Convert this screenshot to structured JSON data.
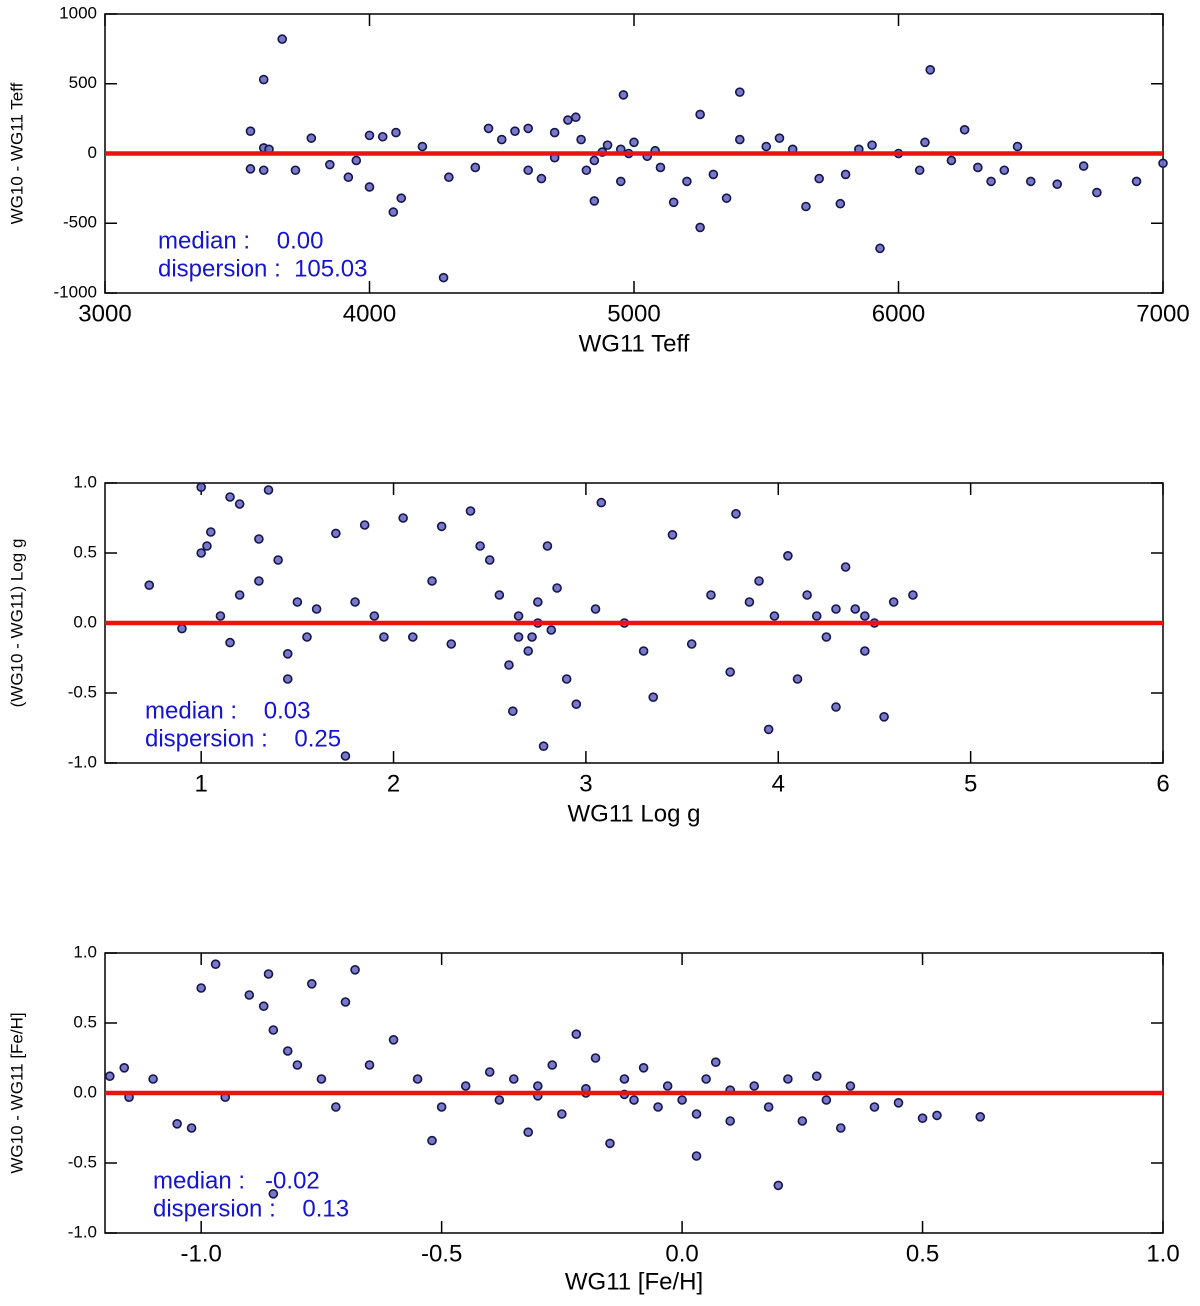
{
  "chart_data": [
    {
      "type": "scatter",
      "x_label": "WG11 Teff",
      "y_label": "WG10 - WG11 Teff",
      "annotations": [
        "median :    0.00",
        "dispersion :  105.03"
      ],
      "color": "#6a6ac4",
      "edge_color": "#14144a",
      "hline": 0,
      "hline_color": "#ee1111",
      "xlim": [
        3000,
        7000
      ],
      "xticks": [
        3000,
        4000,
        5000,
        6000,
        7000
      ],
      "ylim": [
        -1000,
        1000
      ],
      "yticks": [
        1000,
        500,
        0,
        -500,
        -1000
      ],
      "x": [
        3670,
        3600,
        6120,
        4960,
        5400,
        5250,
        3550,
        3600,
        3620,
        3780,
        3550,
        3600,
        3720,
        3850,
        3920,
        3950,
        4000,
        4050,
        4100,
        4000,
        4120,
        4090,
        4280,
        4200,
        4300,
        4400,
        4450,
        4500,
        4550,
        4600,
        4650,
        4700,
        4750,
        4780,
        4800,
        4850,
        4900,
        4950,
        5000,
        5050,
        5100,
        4950,
        4850,
        5150,
        5250,
        5300,
        5350,
        5400,
        5500,
        5600,
        5650,
        5700,
        5780,
        5800,
        5850,
        5900,
        5930,
        6000,
        6100,
        6200,
        6250,
        6300,
        6350,
        6400,
        6450,
        6500,
        6600,
        6700,
        6750,
        6900,
        7000,
        4600,
        5200,
        5550,
        6080,
        4980,
        4880,
        4700,
        5080,
        4820
      ],
      "values": [
        820,
        530,
        600,
        420,
        440,
        280,
        160,
        40,
        30,
        110,
        -110,
        -120,
        -120,
        -80,
        -170,
        -50,
        130,
        120,
        150,
        -240,
        -320,
        -420,
        -890,
        50,
        -170,
        -100,
        180,
        100,
        160,
        180,
        -180,
        150,
        240,
        260,
        100,
        -50,
        60,
        30,
        80,
        -20,
        -100,
        -200,
        -340,
        -350,
        -530,
        -150,
        -320,
        100,
        50,
        30,
        -380,
        -180,
        -360,
        -150,
        30,
        60,
        -680,
        0,
        80,
        -50,
        170,
        -100,
        -200,
        -120,
        50,
        -200,
        -220,
        -90,
        -280,
        -200,
        -70,
        -120,
        -200,
        110,
        -120,
        0,
        10,
        -30,
        20,
        -120
      ]
    },
    {
      "type": "scatter",
      "x_label": "WG11 Log g",
      "y_label": "(WG10 - WG11)  Log g",
      "annotations": [
        "median :    0.03",
        "dispersion :    0.25"
      ],
      "color": "#6a6ac4",
      "edge_color": "#14144a",
      "hline": 0,
      "hline_color": "#ee1111",
      "xlim": [
        0.5,
        6
      ],
      "xticks": [
        1,
        2,
        3,
        4,
        5,
        6
      ],
      "ylim": [
        -1,
        1
      ],
      "yticks": [
        {
          "value": 1,
          "label": "1.0"
        },
        {
          "value": 0.5,
          "label": "0.5"
        },
        {
          "value": 0,
          "label": "0.0"
        },
        {
          "value": -0.5,
          "label": "-0.5"
        },
        {
          "value": -1,
          "label": "-1.0"
        }
      ],
      "x": [
        0.73,
        0.9,
        1.0,
        1.0,
        1.03,
        1.05,
        1.15,
        1.2,
        1.1,
        1.15,
        1.2,
        1.3,
        1.35,
        1.3,
        1.4,
        1.45,
        1.45,
        1.5,
        1.55,
        1.6,
        1.7,
        1.75,
        1.8,
        1.85,
        1.9,
        1.95,
        2.05,
        2.1,
        2.2,
        2.25,
        2.3,
        2.4,
        2.45,
        2.5,
        2.55,
        2.6,
        2.62,
        2.65,
        2.7,
        2.72,
        2.75,
        2.78,
        2.8,
        2.82,
        2.85,
        2.9,
        2.95,
        3.05,
        3.08,
        3.2,
        3.3,
        3.35,
        3.45,
        3.55,
        3.65,
        3.75,
        3.78,
        3.85,
        3.9,
        3.95,
        3.98,
        4.05,
        4.1,
        4.15,
        4.2,
        4.25,
        4.3,
        4.35,
        4.4,
        4.45,
        4.5,
        4.55,
        4.6,
        4.7,
        2.65,
        2.75,
        4.3,
        4.45
      ],
      "values": [
        0.27,
        -0.04,
        0.97,
        0.5,
        0.55,
        0.65,
        0.9,
        0.85,
        0.05,
        -0.14,
        0.2,
        0.3,
        0.95,
        0.6,
        0.45,
        -0.4,
        -0.22,
        0.15,
        -0.1,
        0.1,
        0.64,
        -0.95,
        0.15,
        0.7,
        0.05,
        -0.1,
        0.75,
        -0.1,
        0.3,
        0.69,
        -0.15,
        0.8,
        0.55,
        0.45,
        0.2,
        -0.3,
        -0.63,
        0.05,
        -0.2,
        -0.1,
        0.15,
        -0.88,
        0.55,
        -0.05,
        0.25,
        -0.4,
        -0.58,
        0.1,
        0.86,
        0.0,
        -0.2,
        -0.53,
        0.63,
        -0.15,
        0.2,
        -0.35,
        0.78,
        0.15,
        0.3,
        -0.76,
        0.05,
        0.48,
        -0.4,
        0.2,
        0.05,
        -0.1,
        -0.6,
        0.4,
        0.1,
        -0.2,
        0.0,
        -0.67,
        0.15,
        0.2,
        -0.1,
        0.0,
        0.1,
        0.05
      ]
    },
    {
      "type": "scatter",
      "x_label": "WG11 [Fe/H]",
      "y_label": "WG10 - WG11 [Fe/H]",
      "annotations": [
        "median :   -0.02",
        "dispersion :    0.13"
      ],
      "color": "#6a6ac4",
      "edge_color": "#14144a",
      "hline": 0,
      "hline_color": "#ee1111",
      "xlim": [
        -1.2,
        1.0
      ],
      "xticks": [
        {
          "value": -1,
          "label": "-1.0"
        },
        {
          "value": -0.5,
          "label": "-0.5"
        },
        {
          "value": 0,
          "label": "0.0"
        },
        {
          "value": 0.5,
          "label": "0.5"
        },
        {
          "value": 1,
          "label": "1.0"
        }
      ],
      "ylim": [
        -1,
        1
      ],
      "yticks": [
        {
          "value": 1,
          "label": "1.0"
        },
        {
          "value": 0.5,
          "label": "0.5"
        },
        {
          "value": 0,
          "label": "0.0"
        },
        {
          "value": -0.5,
          "label": "-0.5"
        },
        {
          "value": -1,
          "label": "-1.0"
        }
      ],
      "x": [
        -1.19,
        -1.16,
        -1.15,
        -1.1,
        -1.05,
        -1.02,
        -1.0,
        -0.97,
        -0.95,
        -0.9,
        -0.87,
        -0.86,
        -0.85,
        -0.82,
        -0.8,
        -0.77,
        -0.75,
        -0.72,
        -0.7,
        -0.68,
        -0.65,
        -0.6,
        -0.55,
        -0.52,
        -0.5,
        -0.45,
        -0.4,
        -0.38,
        -0.35,
        -0.32,
        -0.3,
        -0.27,
        -0.25,
        -0.22,
        -0.2,
        -0.18,
        -0.15,
        -0.12,
        -0.1,
        -0.08,
        -0.05,
        -0.03,
        0.0,
        0.03,
        0.05,
        0.07,
        0.1,
        0.15,
        0.18,
        0.2,
        0.22,
        0.25,
        0.28,
        0.3,
        0.33,
        0.35,
        0.4,
        0.45,
        0.5,
        0.53,
        0.62,
        0.03,
        -0.12,
        -0.2,
        0.1,
        -0.3,
        -0.85
      ],
      "values": [
        0.12,
        0.18,
        -0.03,
        0.1,
        -0.22,
        -0.25,
        0.75,
        0.92,
        -0.03,
        0.7,
        0.62,
        0.85,
        0.45,
        0.3,
        0.2,
        0.78,
        0.1,
        -0.1,
        0.65,
        0.88,
        0.2,
        0.38,
        0.1,
        -0.34,
        -0.1,
        0.05,
        0.15,
        -0.05,
        0.1,
        -0.28,
        0.05,
        0.2,
        -0.15,
        0.42,
        0.0,
        0.25,
        -0.36,
        0.1,
        -0.05,
        0.18,
        -0.1,
        0.05,
        -0.05,
        -0.15,
        0.1,
        0.22,
        -0.2,
        0.05,
        -0.1,
        -0.66,
        0.1,
        -0.2,
        0.12,
        -0.05,
        -0.25,
        0.05,
        -0.1,
        -0.07,
        -0.18,
        -0.16,
        -0.17,
        -0.45,
        -0.01,
        0.03,
        0.02,
        -0.02,
        -0.72
      ]
    }
  ]
}
